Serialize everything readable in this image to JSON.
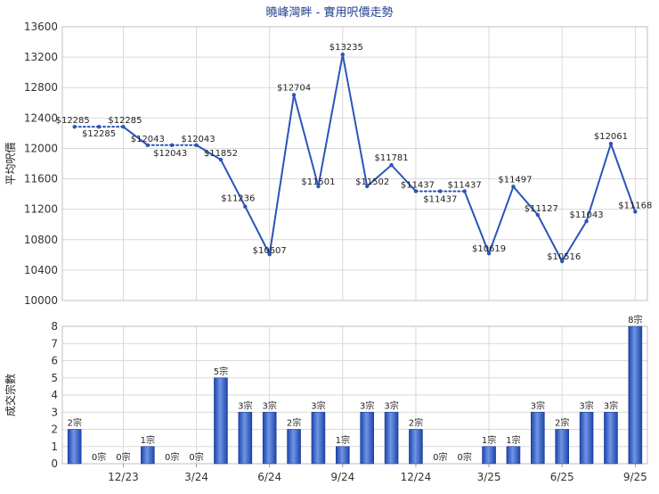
{
  "chart_data": [
    {
      "type": "line",
      "title": "曉峰灣畔 - 實用呎價走勢",
      "ylabel": "平均呎價",
      "ylim": [
        10000,
        13600
      ],
      "yticks": [
        10000,
        10400,
        10800,
        11200,
        11600,
        12000,
        12400,
        12800,
        13200,
        13600
      ],
      "grid": true,
      "color": "#2a55b8",
      "points": [
        {
          "i": 0,
          "v": 12285,
          "label": "$12285"
        },
        {
          "i": 1,
          "v": 12285,
          "label": "$12285"
        },
        {
          "i": 2,
          "v": 12285,
          "label": "$12285"
        },
        {
          "i": 3,
          "v": 12043,
          "label": "$12043"
        },
        {
          "i": 4,
          "v": 12043,
          "label": "$12043"
        },
        {
          "i": 5,
          "v": 12043,
          "label": "$12043"
        },
        {
          "i": 6,
          "v": 11852,
          "label": "$11852"
        },
        {
          "i": 7,
          "v": 11236,
          "label": "$11236"
        },
        {
          "i": 8,
          "v": 10607,
          "label": "$10607"
        },
        {
          "i": 9,
          "v": 12704,
          "label": "$12704"
        },
        {
          "i": 10,
          "v": 11501,
          "label": "$11501"
        },
        {
          "i": 11,
          "v": 13235,
          "label": "$13235"
        },
        {
          "i": 12,
          "v": 11502,
          "label": "$11502"
        },
        {
          "i": 13,
          "v": 11781,
          "label": "$11781"
        },
        {
          "i": 14,
          "v": 11437,
          "label": "$11437"
        },
        {
          "i": 15,
          "v": 11437,
          "label": "$11437"
        },
        {
          "i": 16,
          "v": 11437,
          "label": "$11437"
        },
        {
          "i": 17,
          "v": 10619,
          "label": "$10619"
        },
        {
          "i": 18,
          "v": 11497,
          "label": "$11497"
        },
        {
          "i": 19,
          "v": 11127,
          "label": "$11127"
        },
        {
          "i": 20,
          "v": 10516,
          "label": "$10516"
        },
        {
          "i": 21,
          "v": 11043,
          "label": "$11043"
        },
        {
          "i": 22,
          "v": 12061,
          "label": "$12061"
        },
        {
          "i": 23,
          "v": 11168,
          "label": "$11168"
        }
      ],
      "dotted_segments": [
        [
          0,
          2
        ],
        [
          3,
          5
        ],
        [
          14,
          16
        ]
      ]
    },
    {
      "type": "bar",
      "ylabel": "成交宗數",
      "ylim": [
        0,
        8
      ],
      "yticks": [
        0,
        1,
        2,
        3,
        4,
        5,
        6,
        7,
        8
      ],
      "grid": true,
      "color": "#3a64c4",
      "values": [
        2,
        0,
        0,
        1,
        0,
        0,
        5,
        3,
        3,
        2,
        3,
        1,
        3,
        3,
        2,
        0,
        0,
        1,
        1,
        3,
        2,
        3,
        3,
        8
      ],
      "value_labels": [
        "2宗",
        "0宗",
        "0宗",
        "1宗",
        "0宗",
        "0宗",
        "5宗",
        "3宗",
        "3宗",
        "2宗",
        "3宗",
        "1宗",
        "3宗",
        "3宗",
        "2宗",
        "0宗",
        "0宗",
        "1宗",
        "1宗",
        "3宗",
        "2宗",
        "3宗",
        "3宗",
        "8宗"
      ],
      "x_ticks": [
        {
          "i": 2.5,
          "label": "12/23"
        },
        {
          "i": 5.5,
          "label": "3/24"
        },
        {
          "i": 8.5,
          "label": "6/24"
        },
        {
          "i": 11.5,
          "label": "9/24"
        },
        {
          "i": 14.5,
          "label": "12/24"
        },
        {
          "i": 17.5,
          "label": "3/25"
        },
        {
          "i": 20.5,
          "label": "6/25"
        },
        {
          "i": 23.5,
          "label": "9/25"
        }
      ]
    }
  ]
}
